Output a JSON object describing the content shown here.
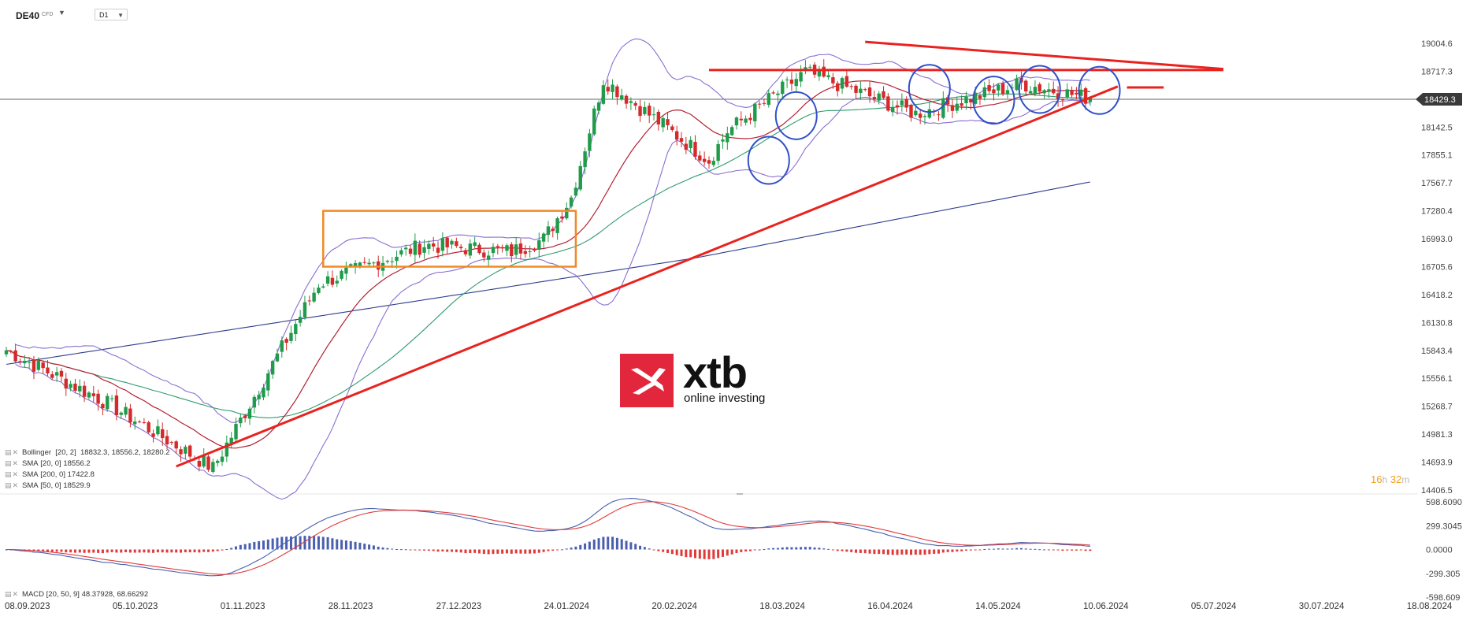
{
  "instrument": {
    "symbol": "DE40",
    "type": "CFD",
    "timeframe": "D1"
  },
  "price_tag": {
    "value": "18429.3",
    "color": "#3a3a3a"
  },
  "timer": {
    "h": "16",
    "h_unit": "h",
    "m": "32",
    "m_unit": "m"
  },
  "logo": {
    "word": "xtb",
    "sub": "online investing",
    "color": "#e2263c"
  },
  "legend": [
    {
      "name": "Bollinger",
      "params": "[20, 2]",
      "values": "18832.3,  18556.2,  18280.2"
    },
    {
      "name": "SMA",
      "params": "[20, 0]",
      "values": "18556.2"
    },
    {
      "name": "SMA",
      "params": "[200, 0]",
      "values": "17422.8"
    },
    {
      "name": "SMA",
      "params": "[50, 0]",
      "values": "18529.9"
    }
  ],
  "macd_legend": {
    "name": "MACD",
    "params": "[20, 50, 9]",
    "values": "48.37928,  68.66292"
  },
  "colors": {
    "up": "#1f9b4a",
    "down": "#d42a2a",
    "bollinger": "#8a6fd1",
    "sma20": "#b32133",
    "sma50": "#2f9a6e",
    "sma200": "#2d3d8f",
    "trend": "#e8231f",
    "box": "#f08a24",
    "circle": "#3050c8",
    "macd_line": "#4a5fb0",
    "signal_line": "#e03a3a"
  },
  "chart_data": [
    {
      "type": "candlestick",
      "title": "DE40",
      "x_tick_labels": [
        "08.09.2023",
        "05.10.2023",
        "01.11.2023",
        "28.11.2023",
        "27.12.2023",
        "24.01.2024",
        "20.02.2024",
        "18.03.2024",
        "16.04.2024",
        "14.05.2024",
        "10.06.2024",
        "05.07.2024",
        "30.07.2024",
        "18.08.2024"
      ],
      "y_tick_labels": [
        "19004.6",
        "18717.3",
        "18429.3",
        "18142.5",
        "17855.1",
        "17567.7",
        "17280.4",
        "16993.0",
        "16705.6",
        "16418.2",
        "16130.8",
        "15843.4",
        "15556.1",
        "15268.7",
        "14981.3",
        "14693.9",
        "14406.5"
      ],
      "ylim": [
        14406.5,
        19004.6
      ],
      "last_price": 18429.3,
      "ohlc_waypoints": {
        "date_index": [
          0,
          22,
          45,
          68,
          91,
          110,
          117,
          123,
          130,
          153,
          157,
          174,
          198,
          221,
          236
        ],
        "close": [
          15845,
          15300,
          14630,
          16530,
          16930,
          16860,
          16990,
          17420,
          18630,
          17800,
          18100,
          18710,
          18280,
          18590,
          18440
        ]
      },
      "indicators": {
        "bollinger": {
          "period": 20,
          "stdev": 2,
          "upper": 18832.3,
          "middle": 18556.2,
          "lower": 18280.2
        },
        "sma20": 18556.2,
        "sma200": 17422.8,
        "sma50": 18529.9
      },
      "annotations": [
        {
          "type": "consolidation-box",
          "from_index": 69,
          "to_index": 124,
          "low": 16705.6,
          "high": 17280.4
        },
        {
          "type": "trendline-support",
          "from": [
            37,
            14650
          ],
          "to": [
            242,
            18560
          ]
        },
        {
          "type": "resistance-line",
          "from": [
            153,
            18730
          ],
          "to": [
            265,
            18730
          ]
        },
        {
          "type": "resistance-line",
          "from": [
            187,
            19020
          ],
          "to": [
            265,
            18740
          ]
        },
        {
          "type": "resistance-stub",
          "from": [
            244,
            18550
          ],
          "to": [
            252,
            18550
          ]
        },
        {
          "type": "circle",
          "center": [
            166,
            17800
          ]
        },
        {
          "type": "circle",
          "center": [
            172,
            18260
          ]
        },
        {
          "type": "circle",
          "center": [
            201,
            18540
          ]
        },
        {
          "type": "circle",
          "center": [
            215,
            18420
          ]
        },
        {
          "type": "circle",
          "center": [
            225,
            18530
          ]
        },
        {
          "type": "circle",
          "center": [
            238,
            18520
          ]
        }
      ]
    },
    {
      "type": "macd",
      "params": [
        20,
        50,
        9
      ],
      "macd": 48.37928,
      "signal": 68.66292,
      "y_tick_labels": [
        "598.6090",
        "299.3045",
        "0.0000",
        "-299.305",
        "-598.609"
      ],
      "ylim": [
        -598.609,
        598.609
      ]
    }
  ]
}
